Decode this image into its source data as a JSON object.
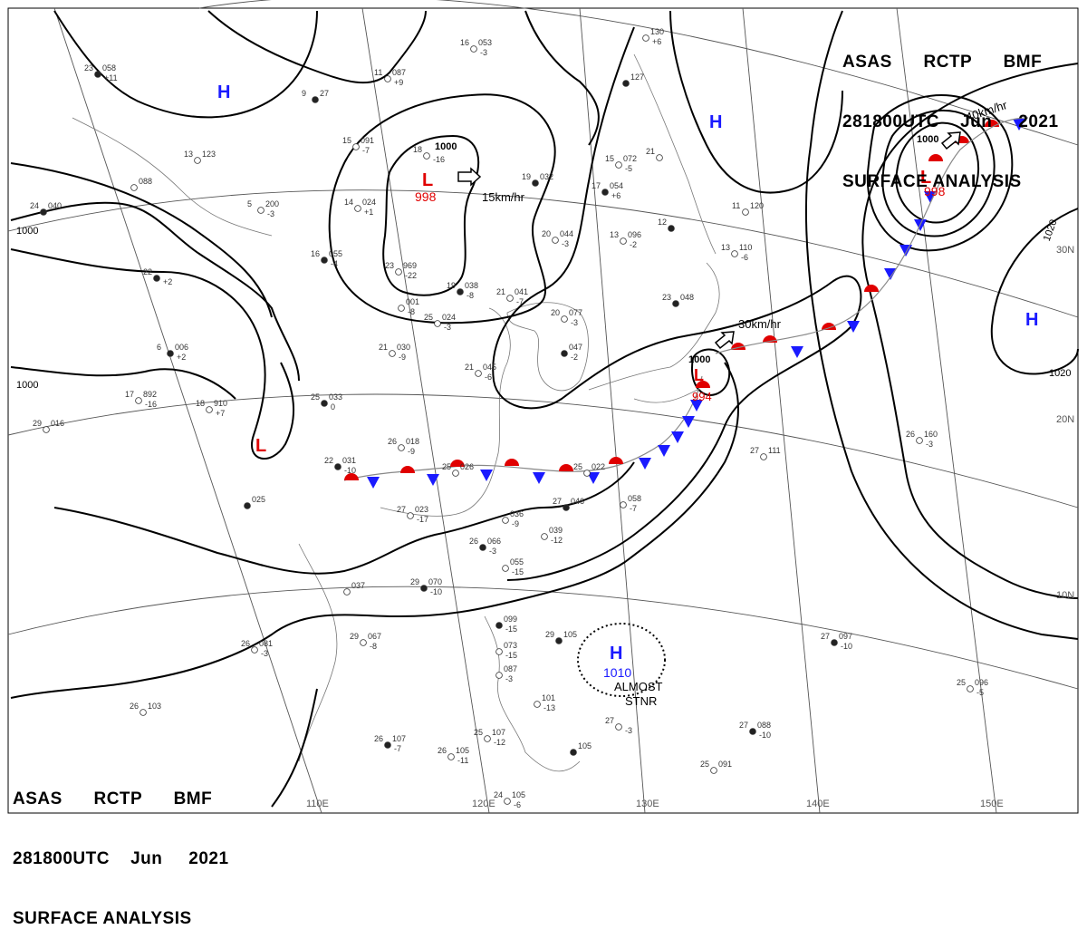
{
  "header": {
    "line1": "ASAS RCTP BMF",
    "line2": "281800UTC Jun 2021",
    "line3": "SURFACE ANALYSIS",
    "agency": "ASAS",
    "station": "RCTP",
    "code": "BMF",
    "datetime": "281800UTC",
    "month": "Jun",
    "year": "2021"
  },
  "longitude_labels": [
    "110E",
    "120E",
    "130E",
    "140E",
    "150E"
  ],
  "latitude_labels": [
    "10N",
    "20N",
    "30N"
  ],
  "isobar_labels": [
    "1000",
    "1000",
    "1000",
    "1000",
    "1000",
    "1000",
    "1020",
    "1020"
  ],
  "pressure_centers": [
    {
      "type": "H",
      "value": "",
      "color": "#1a1aff"
    },
    {
      "type": "H",
      "value": "",
      "color": "#1a1aff"
    },
    {
      "type": "H",
      "value": "",
      "color": "#1a1aff"
    },
    {
      "type": "L",
      "value": "998",
      "color": "#e00000"
    },
    {
      "type": "L",
      "value": "",
      "color": "#e00000"
    },
    {
      "type": "L",
      "value": "994",
      "color": "#e00000"
    },
    {
      "type": "L",
      "value": "998",
      "color": "#e00000"
    },
    {
      "type": "H",
      "value": "1010",
      "color": "#1a1aff"
    }
  ],
  "motion_labels": [
    "15km/hr",
    "30km/hr",
    "40km/hr"
  ],
  "annotations": [
    "ALMOST",
    "STNR"
  ],
  "station_plots": [
    {
      "t": "23",
      "p": "058",
      "d": "+11"
    },
    {
      "t": "11",
      "p": "087",
      "d": "+9"
    },
    {
      "t": "16",
      "p": "053",
      "d": "-3"
    },
    {
      "t": "9",
      "p": "27",
      "d": ""
    },
    {
      "t": "13",
      "p": "123",
      "d": ""
    },
    {
      "t": "",
      "p": "088",
      "d": ""
    },
    {
      "t": "24",
      "p": "040",
      "d": ""
    },
    {
      "t": "15",
      "p": "091",
      "d": "-7"
    },
    {
      "t": "18",
      "p": "",
      "d": "-16"
    },
    {
      "t": "19",
      "p": "032",
      "d": ""
    },
    {
      "t": "14",
      "p": "024",
      "d": "+1"
    },
    {
      "t": "5",
      "p": "200",
      "d": "-3"
    },
    {
      "t": "16",
      "p": "055",
      "d": "-4"
    },
    {
      "t": "23",
      "p": "969",
      "d": "-22"
    },
    {
      "t": "",
      "p": "001",
      "d": "-8"
    },
    {
      "t": "19",
      "p": "038",
      "d": "-8"
    },
    {
      "t": "20",
      "p": "044",
      "d": "-3"
    },
    {
      "t": "21",
      "p": "041",
      "d": "-7"
    },
    {
      "t": "22",
      "p": "",
      "d": "+2"
    },
    {
      "t": "25",
      "p": "024",
      "d": "-3"
    },
    {
      "t": "20",
      "p": "077",
      "d": "-3"
    },
    {
      "t": "6",
      "p": "006",
      "d": "+2"
    },
    {
      "t": "21",
      "p": "030",
      "d": "-9"
    },
    {
      "t": "21",
      "p": "045",
      "d": "-6"
    },
    {
      "t": "",
      "p": "047",
      "d": "-2"
    },
    {
      "t": "17",
      "p": "892",
      "d": "-16"
    },
    {
      "t": "18",
      "p": "910",
      "d": "+7"
    },
    {
      "t": "25",
      "p": "033",
      "d": "0"
    },
    {
      "t": "29",
      "p": "016",
      "d": ""
    },
    {
      "t": "26",
      "p": "018",
      "d": "-9"
    },
    {
      "t": "22",
      "p": "031",
      "d": "-10"
    },
    {
      "t": "25",
      "p": "026",
      "d": ""
    },
    {
      "t": "25",
      "p": "022",
      "d": ""
    },
    {
      "t": "",
      "p": "025",
      "d": ""
    },
    {
      "t": "27",
      "p": "023",
      "d": "-17"
    },
    {
      "t": "",
      "p": "036",
      "d": "-9"
    },
    {
      "t": "27",
      "p": "046",
      "d": ""
    },
    {
      "t": "",
      "p": "058",
      "d": "-7"
    },
    {
      "t": "",
      "p": "039",
      "d": "-12"
    },
    {
      "t": "26",
      "p": "066",
      "d": "-3"
    },
    {
      "t": "",
      "p": "055",
      "d": "-15"
    },
    {
      "t": "",
      "p": "037",
      "d": ""
    },
    {
      "t": "29",
      "p": "070",
      "d": "-10"
    },
    {
      "t": "29",
      "p": "067",
      "d": "-8"
    },
    {
      "t": "26",
      "p": "081",
      "d": "-3"
    },
    {
      "t": "",
      "p": "099",
      "d": "-15"
    },
    {
      "t": "",
      "p": "073",
      "d": "-15"
    },
    {
      "t": "",
      "p": "087",
      "d": "-3"
    },
    {
      "t": "29",
      "p": "105",
      "d": ""
    },
    {
      "t": "26",
      "p": "103",
      "d": ""
    },
    {
      "t": "",
      "p": "101",
      "d": "-13"
    },
    {
      "t": "26",
      "p": "107",
      "d": "-7"
    },
    {
      "t": "26",
      "p": "105",
      "d": "-11"
    },
    {
      "t": "25",
      "p": "107",
      "d": "-12"
    },
    {
      "t": "",
      "p": "105",
      "d": ""
    },
    {
      "t": "24",
      "p": "105",
      "d": "-6"
    },
    {
      "t": "27",
      "p": "",
      "d": "-3"
    },
    {
      "t": "27",
      "p": "088",
      "d": "-10"
    },
    {
      "t": "25",
      "p": "091",
      "d": ""
    },
    {
      "t": "25",
      "p": "096",
      "d": "-5"
    },
    {
      "t": "27",
      "p": "097",
      "d": "-10"
    },
    {
      "t": "27",
      "p": "111",
      "d": ""
    },
    {
      "t": "26",
      "p": "160",
      "d": "-3"
    },
    {
      "t": "17",
      "p": "054",
      "d": "+6"
    },
    {
      "t": "15",
      "p": "072",
      "d": "-5"
    },
    {
      "t": "13",
      "p": "096",
      "d": "-2"
    },
    {
      "t": "12",
      "p": "",
      "d": ""
    },
    {
      "t": "13",
      "p": "110",
      "d": "-6"
    },
    {
      "t": "11",
      "p": "120",
      "d": ""
    },
    {
      "t": "23",
      "p": "048",
      "d": ""
    },
    {
      "t": "21",
      "p": "",
      "d": ""
    },
    {
      "t": "",
      "p": "130",
      "d": "+6"
    },
    {
      "t": "",
      "p": "127",
      "d": ""
    }
  ]
}
